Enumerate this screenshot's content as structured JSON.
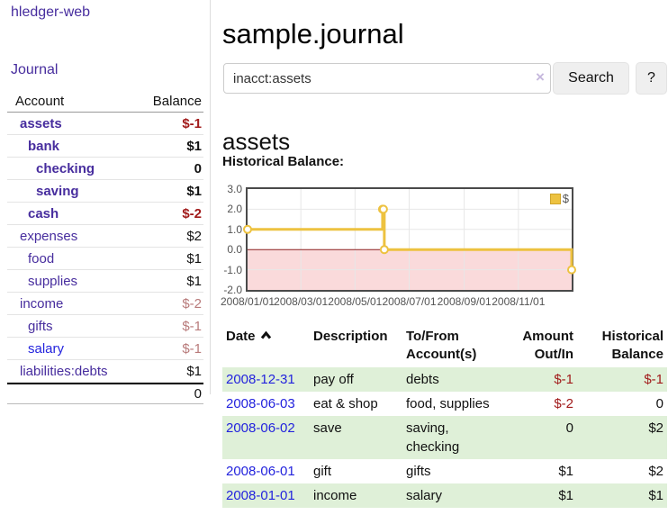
{
  "app": {
    "brand": "hledger-web"
  },
  "sidebar": {
    "journal_link": "Journal",
    "accounts": {
      "header": {
        "account": "Account",
        "balance": "Balance"
      },
      "rows": [
        {
          "name": "assets",
          "balance": "$-1"
        },
        {
          "name": "bank",
          "balance": "$1"
        },
        {
          "name": "checking",
          "balance": "0"
        },
        {
          "name": "saving",
          "balance": "$1"
        },
        {
          "name": "cash",
          "balance": "$-2"
        },
        {
          "name": "expenses",
          "balance": "$2"
        },
        {
          "name": "food",
          "balance": "$1"
        },
        {
          "name": "supplies",
          "balance": "$1"
        },
        {
          "name": "income",
          "balance": "$-2"
        },
        {
          "name": "gifts",
          "balance": "$-1"
        },
        {
          "name": "salary",
          "balance": "$-1"
        },
        {
          "name": "liabilities:debts",
          "balance": "$1"
        }
      ],
      "total": "0"
    }
  },
  "main": {
    "title": "sample.journal",
    "search": {
      "value": "inacct:assets",
      "clear_icon": "×",
      "button": "Search",
      "help": "?"
    },
    "account_heading": "assets",
    "section_label": "Historical Balance:"
  },
  "chart_data": {
    "type": "line",
    "step": true,
    "title": "Historical Balance",
    "x_range": [
      "2008-01-01",
      "2008-12-31"
    ],
    "ylim": [
      -2.0,
      3.0
    ],
    "grid": true,
    "legend_position": "top-right",
    "yticks": [
      {
        "label": "3.0",
        "value": 3
      },
      {
        "label": "2.0",
        "value": 2
      },
      {
        "label": "1.0",
        "value": 1
      },
      {
        "label": "0.0",
        "value": 0
      },
      {
        "label": "-1.0",
        "value": -1
      },
      {
        "label": "-2.0",
        "value": -2
      }
    ],
    "xticks": [
      {
        "label": "2008/01/01",
        "date": "2008-01-01"
      },
      {
        "label": "2008/03/01",
        "date": "2008-03-01"
      },
      {
        "label": "2008/05/01",
        "date": "2008-05-01"
      },
      {
        "label": "2008/07/01",
        "date": "2008-07-01"
      },
      {
        "label": "2008/09/01",
        "date": "2008-09-01"
      },
      {
        "label": "2008/11/01",
        "date": "2008-11-01"
      }
    ],
    "series": [
      {
        "name": "$",
        "color": "#edc240",
        "points": [
          [
            "2008-01-01",
            1
          ],
          [
            "2008-06-01",
            2
          ],
          [
            "2008-06-02",
            2
          ],
          [
            "2008-06-03",
            0
          ],
          [
            "2008-12-31",
            -1
          ]
        ]
      }
    ],
    "negative_region_color": "#fadadb",
    "zero_line_color": "#8b1f1f",
    "gridline_color": "#e7e7e7"
  },
  "register": {
    "headers": {
      "date": "Date",
      "description": "Description",
      "accounts": "To/From Account(s)",
      "amount": "Amount Out/In",
      "balance": "Historical Balance"
    },
    "rows": [
      {
        "date": "2008-12-31",
        "description": "pay off",
        "accounts": "debts",
        "amount": "$-1",
        "balance": "$-1"
      },
      {
        "date": "2008-06-03",
        "description": "eat & shop",
        "accounts": "food, supplies",
        "amount": "$-2",
        "balance": "0"
      },
      {
        "date": "2008-06-02",
        "description": "save",
        "accounts": "saving, checking",
        "amount": "0",
        "balance": "$2"
      },
      {
        "date": "2008-06-01",
        "description": "gift",
        "accounts": "gifts",
        "amount": "$1",
        "balance": "$2"
      },
      {
        "date": "2008-01-01",
        "description": "income",
        "accounts": "salary",
        "amount": "$1",
        "balance": "$1"
      }
    ]
  }
}
